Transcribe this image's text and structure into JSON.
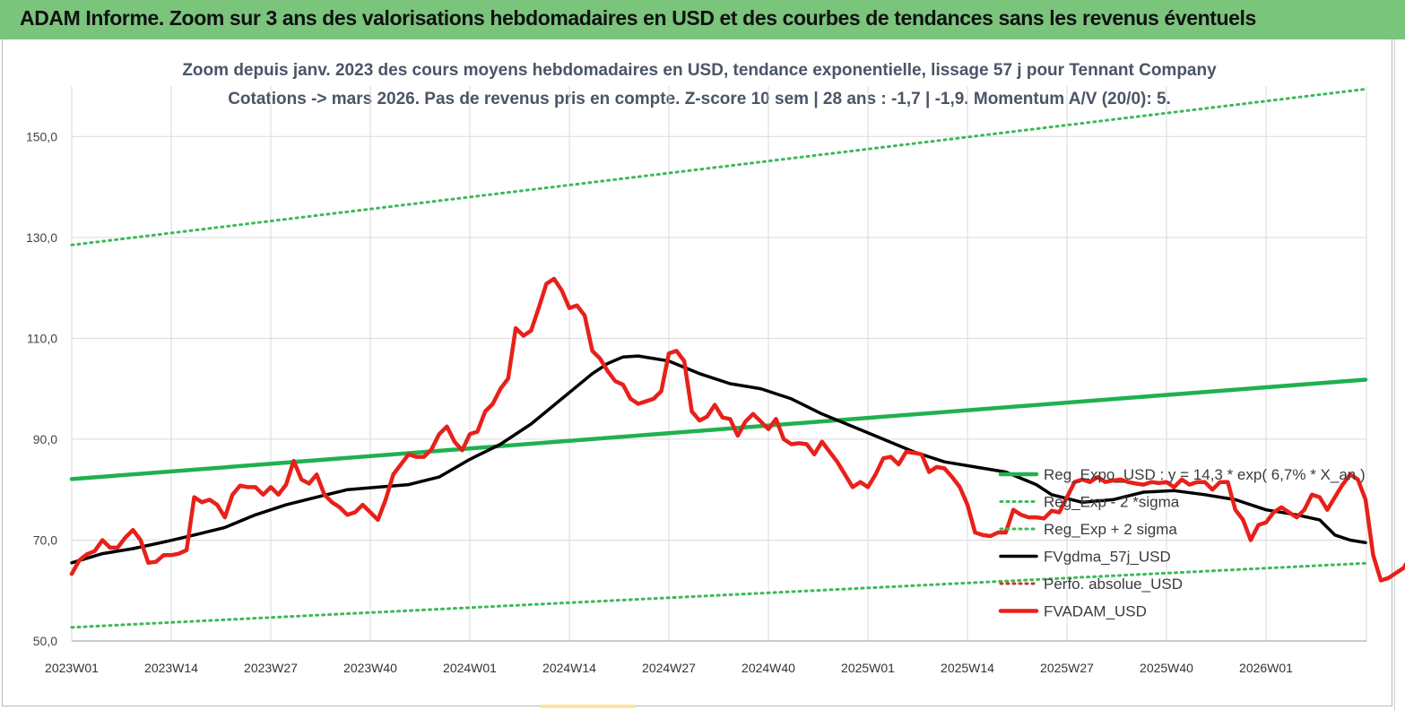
{
  "banner": {
    "title": "ADAM Informe. Zoom sur 3 ans des valorisations hebdomadaires en USD et des courbes de tendances sans les revenus éventuels",
    "background": "#7ac47c"
  },
  "chart_data": {
    "type": "line",
    "title_line1": "Zoom depuis janv. 2023 des cours moyens hebdomadaires en USD, tendance exponentielle, lissage 57 j pour Tennant Company",
    "title_line2": "Cotations -> mars 2026. Pas de revenus pris en compte. Z-score 10 sem  | 28 ans : -1,7 | -1,9. Momentum A/V (20/0): 5.",
    "x_tick_labels": [
      "2023W01",
      "2023W14",
      "2023W27",
      "2023W40",
      "2024W01",
      "2024W14",
      "2024W27",
      "2024W40",
      "2025W01",
      "2025W14",
      "2025W27",
      "2025W40",
      "2026W01"
    ],
    "x_tick_step_weeks": 13,
    "x_range_weeks": [
      0,
      169
    ],
    "ylim": [
      50,
      160
    ],
    "y_ticks": [
      50,
      70,
      90,
      110,
      130,
      150
    ],
    "y_tick_labels": [
      "50,0",
      "70,0",
      "90,0",
      "110,0",
      "130,0",
      "150,0"
    ],
    "grid": true,
    "legend_position": "right-middle",
    "series": [
      {
        "name": "Reg_Expo_USD : y = 14,3 * exp( 6,7% *  X_an )",
        "color": "#1fb14f",
        "style": "solid-thick",
        "points": [
          [
            0,
            82.1
          ],
          [
            169,
            101.8
          ]
        ]
      },
      {
        "name": "Reg_Exp - 2 *sigma",
        "color": "#3cb95a",
        "style": "dotted",
        "points": [
          [
            0,
            52.7
          ],
          [
            169,
            65.4
          ]
        ]
      },
      {
        "name": "Reg_Exp + 2 sigma",
        "color": "#3cb95a",
        "style": "dotted",
        "points": [
          [
            0,
            128.5
          ],
          [
            169,
            159.4
          ]
        ]
      },
      {
        "name": "FVgdma_57j_USD",
        "color": "#000000",
        "style": "solid",
        "points": [
          [
            0,
            65.5
          ],
          [
            4,
            67.3
          ],
          [
            8,
            68.3
          ],
          [
            12,
            69.6
          ],
          [
            16,
            71.0
          ],
          [
            20,
            72.5
          ],
          [
            24,
            75.0
          ],
          [
            28,
            77.0
          ],
          [
            32,
            78.5
          ],
          [
            36,
            80.0
          ],
          [
            40,
            80.5
          ],
          [
            44,
            81.0
          ],
          [
            48,
            82.5
          ],
          [
            52,
            86.0
          ],
          [
            56,
            89.0
          ],
          [
            60,
            93.0
          ],
          [
            64,
            98.0
          ],
          [
            68,
            103.0
          ],
          [
            70,
            105.0
          ],
          [
            72,
            106.3
          ],
          [
            74,
            106.5
          ],
          [
            76,
            106.0
          ],
          [
            78,
            105.5
          ],
          [
            82,
            103.0
          ],
          [
            86,
            101.0
          ],
          [
            90,
            100.0
          ],
          [
            94,
            98.0
          ],
          [
            98,
            95.0
          ],
          [
            102,
            92.5
          ],
          [
            106,
            90.0
          ],
          [
            110,
            87.5
          ],
          [
            114,
            85.5
          ],
          [
            118,
            84.5
          ],
          [
            122,
            83.5
          ],
          [
            126,
            81.0
          ],
          [
            128,
            79.0
          ],
          [
            132,
            77.5
          ],
          [
            136,
            78.0
          ],
          [
            140,
            79.5
          ],
          [
            144,
            79.8
          ],
          [
            148,
            79.0
          ],
          [
            152,
            78.0
          ],
          [
            156,
            76.0
          ],
          [
            160,
            75.0
          ],
          [
            163,
            74.0
          ],
          [
            165,
            71.0
          ],
          [
            167,
            70.0
          ],
          [
            169,
            69.5
          ]
        ]
      },
      {
        "name": "Perfo. absolue_USD",
        "color": "#c0392b",
        "style": "dotted",
        "points": []
      },
      {
        "name": "FVADAM_USD",
        "color": "#e8201a",
        "style": "solid-thick",
        "points": [
          [
            0,
            63.3
          ],
          [
            1,
            66.0
          ],
          [
            2,
            67.2
          ],
          [
            3,
            67.8
          ],
          [
            4,
            70.0
          ],
          [
            5,
            68.5
          ],
          [
            6,
            68.5
          ],
          [
            7,
            70.5
          ],
          [
            8,
            72.0
          ],
          [
            9,
            70.0
          ],
          [
            10,
            65.5
          ],
          [
            11,
            65.7
          ],
          [
            12,
            67.0
          ],
          [
            13,
            67.0
          ],
          [
            14,
            67.3
          ],
          [
            15,
            68.0
          ],
          [
            16,
            78.5
          ],
          [
            17,
            77.5
          ],
          [
            18,
            78.0
          ],
          [
            19,
            77.0
          ],
          [
            20,
            74.5
          ],
          [
            21,
            79.0
          ],
          [
            22,
            80.8
          ],
          [
            23,
            80.5
          ],
          [
            24,
            80.5
          ],
          [
            25,
            79.0
          ],
          [
            26,
            80.5
          ],
          [
            27,
            79.0
          ],
          [
            28,
            81.0
          ],
          [
            29,
            85.7
          ],
          [
            30,
            82.0
          ],
          [
            31,
            81.2
          ],
          [
            32,
            83.0
          ],
          [
            33,
            79.0
          ],
          [
            34,
            77.5
          ],
          [
            35,
            76.5
          ],
          [
            36,
            75.0
          ],
          [
            37,
            75.5
          ],
          [
            38,
            77.0
          ],
          [
            39,
            75.5
          ],
          [
            40,
            74.0
          ],
          [
            41,
            78.0
          ],
          [
            42,
            83.0
          ],
          [
            43,
            85.0
          ],
          [
            44,
            87.0
          ],
          [
            45,
            86.5
          ],
          [
            46,
            86.5
          ],
          [
            47,
            88.0
          ],
          [
            48,
            91.0
          ],
          [
            49,
            92.5
          ],
          [
            50,
            89.5
          ],
          [
            51,
            87.8
          ],
          [
            52,
            91.0
          ],
          [
            53,
            91.5
          ],
          [
            54,
            95.5
          ],
          [
            55,
            97.0
          ],
          [
            56,
            100.0
          ],
          [
            57,
            102.0
          ],
          [
            58,
            112.0
          ],
          [
            59,
            110.5
          ],
          [
            60,
            111.5
          ],
          [
            61,
            116.0
          ],
          [
            62,
            120.8
          ],
          [
            63,
            121.8
          ],
          [
            64,
            119.5
          ],
          [
            65,
            116.0
          ],
          [
            66,
            116.5
          ],
          [
            67,
            114.5
          ],
          [
            68,
            107.5
          ],
          [
            69,
            106.0
          ],
          [
            70,
            103.5
          ],
          [
            71,
            101.5
          ],
          [
            72,
            100.8
          ],
          [
            73,
            98.0
          ],
          [
            74,
            97.0
          ],
          [
            75,
            97.5
          ],
          [
            76,
            98.0
          ],
          [
            77,
            99.5
          ],
          [
            78,
            107.0
          ],
          [
            79,
            107.5
          ],
          [
            80,
            105.5
          ],
          [
            81,
            95.5
          ],
          [
            82,
            93.7
          ],
          [
            83,
            94.5
          ],
          [
            84,
            96.8
          ],
          [
            85,
            94.3
          ],
          [
            86,
            94.0
          ],
          [
            87,
            90.7
          ],
          [
            88,
            93.5
          ],
          [
            89,
            95.0
          ],
          [
            90,
            93.5
          ],
          [
            91,
            92.0
          ],
          [
            92,
            94.0
          ],
          [
            93,
            90.0
          ],
          [
            94,
            89.0
          ],
          [
            95,
            89.2
          ],
          [
            96,
            89.0
          ],
          [
            97,
            87.0
          ],
          [
            98,
            89.5
          ],
          [
            99,
            87.5
          ],
          [
            100,
            85.5
          ],
          [
            101,
            83.0
          ],
          [
            102,
            80.5
          ],
          [
            103,
            81.5
          ],
          [
            104,
            80.5
          ],
          [
            105,
            83.0
          ],
          [
            106,
            86.2
          ],
          [
            107,
            86.5
          ],
          [
            108,
            85.0
          ],
          [
            109,
            87.5
          ],
          [
            110,
            87.3
          ],
          [
            111,
            87.0
          ],
          [
            112,
            83.5
          ],
          [
            113,
            84.5
          ],
          [
            114,
            84.2
          ],
          [
            115,
            82.5
          ],
          [
            116,
            80.5
          ],
          [
            117,
            77.0
          ],
          [
            118,
            71.5
          ],
          [
            119,
            71.0
          ],
          [
            120,
            70.8
          ],
          [
            121,
            71.5
          ],
          [
            122,
            71.5
          ],
          [
            123,
            76.0
          ],
          [
            124,
            75.0
          ],
          [
            125,
            74.5
          ],
          [
            126,
            74.5
          ],
          [
            127,
            74.3
          ],
          [
            128,
            75.8
          ],
          [
            129,
            75.5
          ],
          [
            130,
            78.5
          ],
          [
            131,
            81.5
          ],
          [
            132,
            82.0
          ],
          [
            133,
            81.5
          ],
          [
            134,
            82.5
          ],
          [
            135,
            81.5
          ],
          [
            136,
            81.8
          ],
          [
            137,
            82.0
          ],
          [
            138,
            81.5
          ],
          [
            139,
            81.2
          ],
          [
            140,
            81.0
          ],
          [
            141,
            81.5
          ],
          [
            142,
            81.3
          ],
          [
            143,
            81.5
          ],
          [
            144,
            80.5
          ],
          [
            145,
            82.0
          ],
          [
            146,
            81.0
          ],
          [
            147,
            81.5
          ],
          [
            148,
            81.5
          ],
          [
            149,
            80.0
          ],
          [
            150,
            81.5
          ],
          [
            151,
            81.5
          ],
          [
            152,
            76.0
          ],
          [
            153,
            74.0
          ],
          [
            154,
            70.0
          ],
          [
            155,
            73.0
          ],
          [
            156,
            73.5
          ],
          [
            157,
            75.5
          ],
          [
            158,
            76.5
          ],
          [
            159,
            75.5
          ],
          [
            160,
            74.5
          ],
          [
            161,
            76.0
          ],
          [
            162,
            79.0
          ],
          [
            163,
            78.5
          ],
          [
            164,
            76.0
          ],
          [
            165,
            78.5
          ],
          [
            166,
            81.0
          ],
          [
            167,
            83.0
          ],
          [
            168,
            82.0
          ],
          [
            169,
            78.0
          ],
          [
            170,
            67.0
          ],
          [
            171,
            62.0
          ],
          [
            172,
            62.5
          ],
          [
            173,
            63.5
          ],
          [
            174,
            64.5
          ],
          [
            175,
            67.2
          ]
        ]
      }
    ]
  }
}
